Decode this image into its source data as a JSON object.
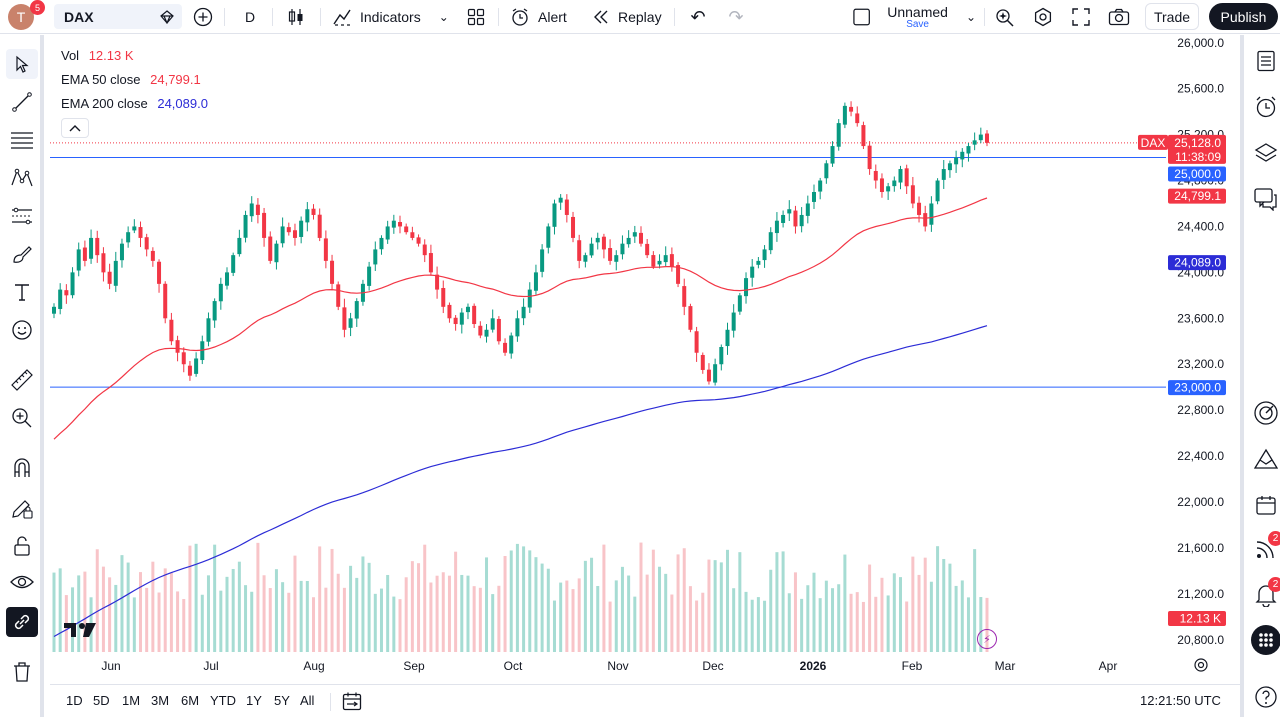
{
  "topbar": {
    "avatar_initial": "T",
    "avatar_badge": "5",
    "symbol": "DAX",
    "interval": "D",
    "indicators_label": "Indicators",
    "alert_label": "Alert",
    "replay_label": "Replay",
    "layout_name": "Unnamed",
    "layout_save": "Save",
    "trade_label": "Trade",
    "publish_label": "Publish"
  },
  "legend": {
    "vol_label": "Vol",
    "vol_value": "12.13 K",
    "ema50_label": "EMA 50 close",
    "ema50_value": "24,799.1",
    "ema200_label": "EMA 200 close",
    "ema200_value": "24,089.0"
  },
  "colors": {
    "up": "#089981",
    "down": "#f23645",
    "ema50": "#f23645",
    "ema200": "#2c2cd6",
    "hline": "#2962ff",
    "up_vol": "#a6dcd3",
    "down_vol": "#f8c4c8"
  },
  "price_axis": {
    "ticks": [
      "26,000.0",
      "25,600.0",
      "25,200.0",
      "24,800.0",
      "24,400.0",
      "24,000.0",
      "23,600.0",
      "23,200.0",
      "22,800.0",
      "22,400.0",
      "22,000.0",
      "21,600.0",
      "21,200.0",
      "20,800.0"
    ],
    "min": 20650,
    "max": 26050
  },
  "price_labels": {
    "symbol_tag": "DAX",
    "last_price": "25,128.0",
    "countdown": "11:38:09",
    "hline_upper": "25,000.0",
    "ema50": "24,799.1",
    "ema200": "24,089.0",
    "hline_lower": "23,000.0",
    "volume": "12.13 K"
  },
  "time_axis": [
    "Jun",
    "Jul",
    "Aug",
    "Sep",
    "Oct",
    "Nov",
    "Dec",
    "2026",
    "Feb",
    "Mar",
    "Apr"
  ],
  "bottombar": {
    "ranges": [
      "1D",
      "5D",
      "1M",
      "3M",
      "6M",
      "YTD",
      "1Y",
      "5Y",
      "All"
    ],
    "clock": "12:21:50 UTC"
  },
  "right_badges": {
    "ideas": "2",
    "notifications": "2"
  },
  "chart_data": {
    "type": "candlestick",
    "symbol": "DAX",
    "interval": "D",
    "horizontal_lines": [
      25000,
      23000
    ],
    "last_close": 25128,
    "ema50_last": 24799.1,
    "ema200_last": 24089.0,
    "closes": [
      23700,
      23850,
      23800,
      24000,
      24200,
      24100,
      24300,
      24150,
      24000,
      23900,
      24100,
      24250,
      24350,
      24400,
      24300,
      24200,
      24100,
      23900,
      23600,
      23400,
      23300,
      23200,
      23100,
      23250,
      23400,
      23600,
      23750,
      23900,
      24000,
      24150,
      24300,
      24500,
      24600,
      24500,
      24300,
      24100,
      24250,
      24400,
      24350,
      24300,
      24450,
      24550,
      24500,
      24300,
      24100,
      23900,
      23700,
      23500,
      23600,
      23750,
      23900,
      24050,
      24200,
      24300,
      24400,
      24450,
      24400,
      24350,
      24300,
      24250,
      24150,
      24000,
      23850,
      23700,
      23600,
      23550,
      23650,
      23700,
      23550,
      23450,
      23500,
      23600,
      23400,
      23300,
      23450,
      23600,
      23700,
      23850,
      24000,
      24200,
      24400,
      24600,
      24650,
      24500,
      24300,
      24100,
      24150,
      24250,
      24300,
      24200,
      24100,
      24150,
      24250,
      24300,
      24350,
      24250,
      24150,
      24050,
      24100,
      24150,
      24050,
      23900,
      23700,
      23500,
      23300,
      23150,
      23050,
      23200,
      23350,
      23500,
      23650,
      23800,
      23950,
      24050,
      24100,
      24200,
      24350,
      24450,
      24500,
      24550,
      24400,
      24500,
      24600,
      24700,
      24800,
      24950,
      25100,
      25300,
      25450,
      25400,
      25300,
      25100,
      24900,
      24800,
      24700,
      24750,
      24800,
      24900,
      24750,
      24600,
      24500,
      24400,
      24600,
      24800,
      24900,
      24950,
      25000,
      25050,
      25100,
      25150,
      25200,
      25128
    ]
  }
}
